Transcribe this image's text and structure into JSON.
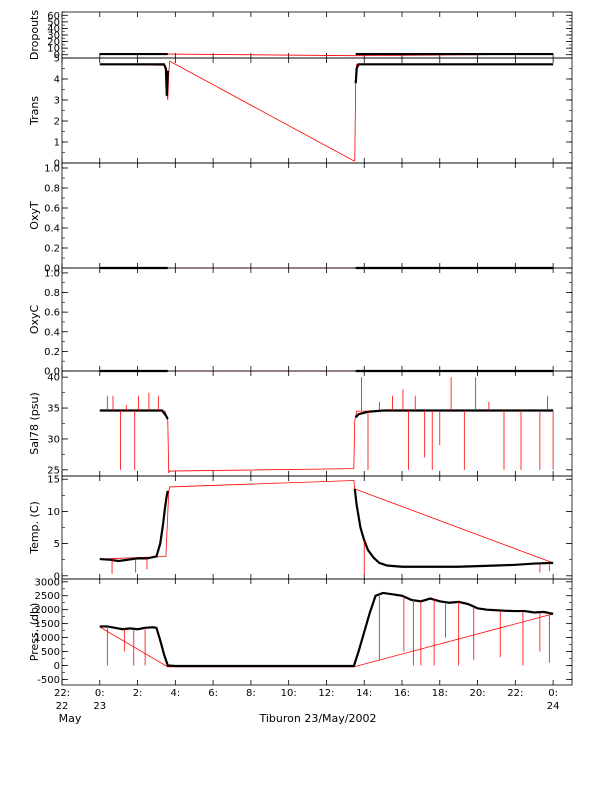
{
  "chart_data": [
    {
      "type": "line",
      "ylabel": "Dropouts",
      "ylim": [
        -5,
        65
      ],
      "yticks": [
        0,
        10,
        20,
        30,
        40,
        50,
        60
      ],
      "series": [
        {
          "color": "#ff0000",
          "x": [
            0,
            3.7,
            13.5,
            24
          ],
          "y": [
            1,
            1,
            -1.5,
            1
          ]
        },
        {
          "color": "#000000",
          "segments": [
            {
              "x": [
                0,
                3.6
              ],
              "y": [
                1,
                1
              ]
            },
            {
              "x": [
                13.55,
                24
              ],
              "y": [
                1,
                1
              ]
            }
          ]
        }
      ]
    },
    {
      "type": "line",
      "ylabel": "Trans",
      "ylim": [
        0,
        5
      ],
      "yticks": [
        0,
        1,
        2,
        3,
        4,
        5
      ],
      "series": [
        {
          "color": "#ff0000",
          "x": [
            0,
            3.45,
            3.6,
            3.65,
            3.7,
            13.45,
            13.5,
            13.55,
            13.6,
            24
          ],
          "y": [
            4.7,
            4.65,
            3.0,
            4.2,
            4.85,
            0.1,
            0.1,
            4.1,
            4.7,
            4.7
          ]
        },
        {
          "color": "#000000",
          "segments": [
            {
              "x": [
                0,
                3.4,
                3.5,
                3.55,
                3.6
              ],
              "y": [
                4.7,
                4.7,
                4.5,
                3.2,
                4.4
              ]
            },
            {
              "x": [
                13.55,
                13.6,
                13.7,
                24
              ],
              "y": [
                3.8,
                4.5,
                4.7,
                4.7
              ]
            }
          ]
        }
      ]
    },
    {
      "type": "line",
      "ylabel": "OxyT",
      "ylim": [
        0,
        1.05
      ],
      "yticks": [
        0.0,
        0.2,
        0.4,
        0.6,
        0.8,
        1.0
      ],
      "series": [
        {
          "color": "#ff0000",
          "x": [
            0,
            24
          ],
          "y": [
            0,
            0
          ]
        },
        {
          "color": "#000000",
          "segments": [
            {
              "x": [
                0,
                3.6
              ],
              "y": [
                0,
                0
              ]
            },
            {
              "x": [
                13.55,
                24
              ],
              "y": [
                0,
                0
              ]
            }
          ]
        }
      ]
    },
    {
      "type": "line",
      "ylabel": "OxyC",
      "ylim": [
        0,
        1.05
      ],
      "yticks": [
        0.0,
        0.2,
        0.4,
        0.6,
        0.8,
        1.0
      ],
      "series": [
        {
          "color": "#ff0000",
          "x": [
            0,
            24
          ],
          "y": [
            0,
            0
          ]
        },
        {
          "color": "#000000",
          "segments": [
            {
              "x": [
                0,
                3.6
              ],
              "y": [
                0,
                0
              ]
            },
            {
              "x": [
                13.55,
                24
              ],
              "y": [
                0,
                0
              ]
            }
          ]
        }
      ]
    },
    {
      "type": "line",
      "ylabel": "Sal78 (psu)",
      "ylim": [
        24,
        41
      ],
      "yticks": [
        25,
        30,
        35,
        40
      ],
      "series": [
        {
          "color": "#ff0000",
          "x": [
            0,
            3.45,
            3.6,
            3.65,
            3.7,
            13.45,
            13.5,
            13.6,
            24
          ],
          "y": [
            34.6,
            34.5,
            33,
            24.5,
            24.8,
            25.2,
            33,
            34.5,
            34.7
          ]
        },
        {
          "color": "#000000",
          "segments": [
            {
              "x": [
                0,
                3.3,
                3.5,
                3.6
              ],
              "y": [
                34.6,
                34.6,
                33.8,
                33.2
              ]
            },
            {
              "x": [
                13.55,
                13.7,
                14.2,
                15,
                24
              ],
              "y": [
                33.5,
                34.0,
                34.4,
                34.6,
                34.6
              ]
            }
          ]
        }
      ],
      "spikes": [
        {
          "x": 0.4,
          "y": [
            34.6,
            37
          ]
        },
        {
          "x": 0.7,
          "y": [
            34.6,
            37
          ]
        },
        {
          "x": 1.1,
          "y": [
            34.6,
            25
          ]
        },
        {
          "x": 1.4,
          "y": [
            34.6,
            35.5
          ]
        },
        {
          "x": 1.85,
          "y": [
            34.6,
            25
          ]
        },
        {
          "x": 2.05,
          "y": [
            34.6,
            37
          ]
        },
        {
          "x": 2.6,
          "y": [
            34.6,
            37.5
          ]
        },
        {
          "x": 3.1,
          "y": [
            34.6,
            37
          ]
        },
        {
          "x": 13.85,
          "y": [
            34.6,
            40
          ]
        },
        {
          "x": 14.2,
          "y": [
            34.6,
            25
          ]
        },
        {
          "x": 14.8,
          "y": [
            34.6,
            36
          ]
        },
        {
          "x": 15.5,
          "y": [
            34.6,
            37
          ]
        },
        {
          "x": 16.05,
          "y": [
            34.6,
            38
          ]
        },
        {
          "x": 16.35,
          "y": [
            34.6,
            25
          ]
        },
        {
          "x": 16.7,
          "y": [
            34.6,
            37
          ]
        },
        {
          "x": 17.2,
          "y": [
            34.6,
            27
          ]
        },
        {
          "x": 17.6,
          "y": [
            34.6,
            25
          ]
        },
        {
          "x": 18.0,
          "y": [
            34.6,
            29
          ]
        },
        {
          "x": 18.6,
          "y": [
            34.6,
            40
          ]
        },
        {
          "x": 19.3,
          "y": [
            34.6,
            25
          ]
        },
        {
          "x": 19.9,
          "y": [
            34.6,
            40
          ]
        },
        {
          "x": 20.6,
          "y": [
            34.6,
            36
          ]
        },
        {
          "x": 21.4,
          "y": [
            34.6,
            25
          ]
        },
        {
          "x": 22.3,
          "y": [
            34.6,
            25
          ]
        },
        {
          "x": 23.3,
          "y": [
            34.6,
            25
          ]
        },
        {
          "x": 23.7,
          "y": [
            34.6,
            37
          ]
        },
        {
          "x": 24.0,
          "y": [
            34.6,
            25
          ]
        }
      ]
    },
    {
      "type": "line",
      "ylabel": "Temp. (C)",
      "ylim": [
        -0.5,
        15.5
      ],
      "yticks": [
        0,
        5,
        10,
        15
      ],
      "series": [
        {
          "color": "#ff0000",
          "x": [
            0,
            3.5,
            3.65,
            3.7,
            13.45,
            13.5,
            24
          ],
          "y": [
            2.6,
            3.0,
            13.0,
            13.8,
            14.8,
            13.5,
            2.0
          ]
        },
        {
          "color": "#000000",
          "segments": [
            {
              "x": [
                0,
                0.5,
                1.0,
                1.5,
                2.0,
                2.5,
                3.0,
                3.2,
                3.35,
                3.45,
                3.55,
                3.6
              ],
              "y": [
                2.6,
                2.5,
                2.3,
                2.5,
                2.7,
                2.7,
                3.0,
                5.0,
                8.0,
                10.5,
                12.5,
                13.2
              ]
            },
            {
              "x": [
                13.5,
                13.6,
                13.8,
                14.0,
                14.2,
                14.5,
                14.8,
                15.2,
                16,
                17,
                18,
                19,
                20,
                21,
                22,
                23,
                24
              ],
              "y": [
                13.5,
                11.0,
                7.5,
                5.5,
                4.0,
                2.8,
                2.0,
                1.6,
                1.4,
                1.4,
                1.4,
                1.4,
                1.5,
                1.6,
                1.7,
                1.9,
                2.0
              ]
            }
          ]
        }
      ],
      "spikes": [
        {
          "x": 0.65,
          "y": [
            2.6,
            0.3
          ]
        },
        {
          "x": 1.9,
          "y": [
            2.6,
            0.5
          ]
        },
        {
          "x": 2.5,
          "y": [
            2.7,
            1.0
          ]
        },
        {
          "x": 14.0,
          "y": [
            5.5,
            0.1
          ]
        },
        {
          "x": 23.3,
          "y": [
            1.9,
            0.5
          ]
        },
        {
          "x": 23.8,
          "y": [
            2.0,
            0.7
          ]
        }
      ]
    },
    {
      "type": "line",
      "ylabel": "Press. (db)",
      "ylim": [
        -700,
        3100
      ],
      "yticks": [
        -500,
        0,
        500,
        1000,
        1500,
        2000,
        2500,
        3000
      ],
      "series": [
        {
          "color": "#ff0000",
          "x": [
            0,
            3.6,
            13.45,
            24
          ],
          "y": [
            1380,
            -50,
            -50,
            1850
          ]
        },
        {
          "color": "#000000",
          "segments": [
            {
              "x": [
                0,
                0.4,
                0.8,
                1.2,
                1.6,
                2.0,
                2.4,
                2.8,
                3.0,
                3.2,
                3.4,
                3.6,
                4.0,
                13.45,
                13.7,
                14.0,
                14.3,
                14.6,
                15,
                15.5,
                16,
                16.5,
                17,
                17.5,
                18,
                18.5,
                19,
                19.5,
                20,
                20.5,
                21,
                21.5,
                22,
                22.5,
                23,
                23.5,
                24
              ],
              "y": [
                1400,
                1400,
                1350,
                1300,
                1330,
                1300,
                1350,
                1370,
                1350,
                900,
                400,
                0,
                -20,
                -20,
                500,
                1200,
                1900,
                2500,
                2600,
                2550,
                2500,
                2350,
                2300,
                2400,
                2300,
                2250,
                2280,
                2200,
                2050,
                2000,
                1980,
                1960,
                1950,
                1950,
                1900,
                1920,
                1850
              ]
            }
          ]
        }
      ],
      "spikes": [
        {
          "x": 0.4,
          "y": [
            1400,
            0
          ]
        },
        {
          "x": 1.3,
          "y": [
            1300,
            500
          ]
        },
        {
          "x": 1.8,
          "y": [
            1300,
            0
          ]
        },
        {
          "x": 2.4,
          "y": [
            1350,
            0
          ]
        },
        {
          "x": 14.8,
          "y": [
            2600,
            200
          ]
        },
        {
          "x": 16.1,
          "y": [
            2500,
            500
          ]
        },
        {
          "x": 16.6,
          "y": [
            2350,
            0
          ]
        },
        {
          "x": 17.0,
          "y": [
            2300,
            0
          ]
        },
        {
          "x": 17.7,
          "y": [
            2400,
            0
          ]
        },
        {
          "x": 18.3,
          "y": [
            2280,
            1000
          ]
        },
        {
          "x": 19.0,
          "y": [
            2280,
            0
          ]
        },
        {
          "x": 19.8,
          "y": [
            2100,
            200
          ]
        },
        {
          "x": 21.2,
          "y": [
            1970,
            300
          ]
        },
        {
          "x": 22.4,
          "y": [
            1950,
            0
          ]
        },
        {
          "x": 23.3,
          "y": [
            1900,
            500
          ]
        },
        {
          "x": 23.8,
          "y": [
            1900,
            100
          ]
        }
      ]
    }
  ],
  "xaxis": {
    "xlim": [
      -2,
      25
    ],
    "major_ticks": [
      {
        "x": -2,
        "label": "22:",
        "sublabel": "22"
      },
      {
        "x": 0,
        "label": "0:",
        "sublabel": "23"
      },
      {
        "x": 2,
        "label": "2:",
        "sublabel": ""
      },
      {
        "x": 4,
        "label": "4:",
        "sublabel": ""
      },
      {
        "x": 6,
        "label": "6:",
        "sublabel": ""
      },
      {
        "x": 8,
        "label": "8:",
        "sublabel": ""
      },
      {
        "x": 10,
        "label": "10:",
        "sublabel": ""
      },
      {
        "x": 12,
        "label": "12:",
        "sublabel": ""
      },
      {
        "x": 14,
        "label": "14:",
        "sublabel": ""
      },
      {
        "x": 16,
        "label": "16:",
        "sublabel": ""
      },
      {
        "x": 18,
        "label": "18:",
        "sublabel": ""
      },
      {
        "x": 20,
        "label": "20:",
        "sublabel": ""
      },
      {
        "x": 22,
        "label": "22:",
        "sublabel": ""
      },
      {
        "x": 24,
        "label": "0:",
        "sublabel": "24"
      }
    ],
    "month_label": "May",
    "title": "Tiburon 23/May/2002"
  }
}
